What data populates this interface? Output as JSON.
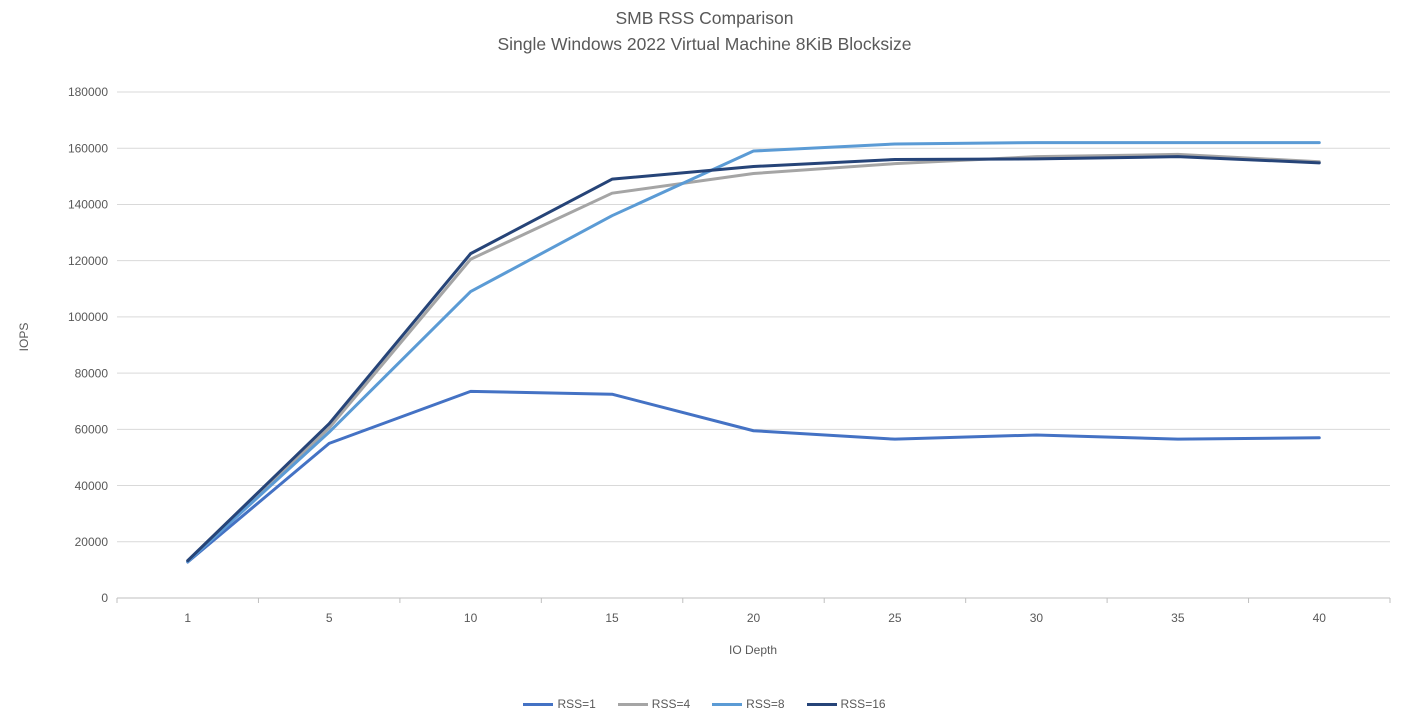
{
  "title": {
    "line1": "SMB RSS Comparison",
    "line2": "Single Windows 2022 Virtual Machine 8KiB Blocksize"
  },
  "chart_data": {
    "type": "line",
    "title": "SMB RSS Comparison",
    "subtitle": "Single Windows 2022 Virtual Machine 8KiB Blocksize",
    "x": [
      1,
      5,
      10,
      15,
      20,
      25,
      30,
      35,
      40
    ],
    "xlabel": "IO Depth",
    "ylabel": "IOPS",
    "ylim": [
      0,
      180000
    ],
    "ytick_step": 20000,
    "grid": true,
    "legend_position": "bottom",
    "series": [
      {
        "name": "RSS=1",
        "color": "#4472C4",
        "values": [
          12800,
          55000,
          73500,
          72500,
          59500,
          56500,
          58000,
          56500,
          57000
        ]
      },
      {
        "name": "RSS=4",
        "color": "#A5A5A5",
        "values": [
          13000,
          60500,
          120500,
          144000,
          151000,
          154500,
          157000,
          157800,
          155200
        ]
      },
      {
        "name": "RSS=8",
        "color": "#5B9BD5",
        "values": [
          13000,
          59000,
          109000,
          136000,
          159000,
          161500,
          162000,
          162000,
          162000
        ]
      },
      {
        "name": "RSS=16",
        "color": "#264478",
        "values": [
          13300,
          62000,
          122500,
          149000,
          153500,
          156000,
          156200,
          157000,
          154800
        ]
      }
    ]
  },
  "colors": {
    "text": "#595959",
    "gridline": "#D9D9D9",
    "axis": "#BFBFBF",
    "background": "#FFFFFF"
  }
}
